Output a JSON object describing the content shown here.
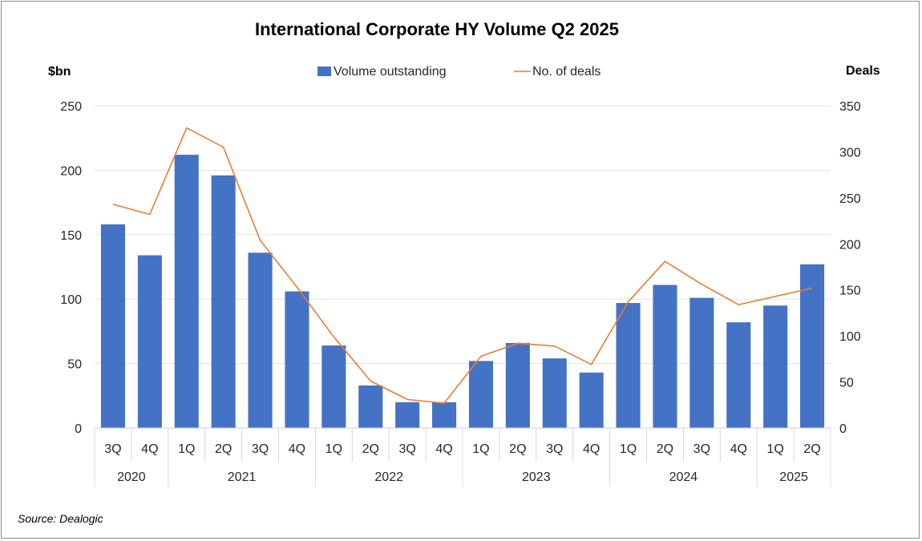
{
  "chart_data": {
    "type": "bar",
    "title": "International Corporate HY Volume Q2 2025",
    "ylabel_left": "$bn",
    "ylabel_right": "Deals",
    "ylim_left": [
      0,
      250
    ],
    "ylim_right": [
      0,
      350
    ],
    "yticks_left": [
      0,
      50,
      100,
      150,
      200,
      250
    ],
    "yticks_right": [
      0,
      50,
      100,
      150,
      200,
      250,
      300,
      350
    ],
    "categories": [
      "3Q",
      "4Q",
      "1Q",
      "2Q",
      "3Q",
      "4Q",
      "1Q",
      "2Q",
      "3Q",
      "4Q",
      "1Q",
      "2Q",
      "3Q",
      "4Q",
      "1Q",
      "2Q",
      "3Q",
      "4Q",
      "1Q",
      "2Q"
    ],
    "year_groups": [
      {
        "label": "2020",
        "count": 2
      },
      {
        "label": "2021",
        "count": 4
      },
      {
        "label": "2022",
        "count": 4
      },
      {
        "label": "2023",
        "count": 4
      },
      {
        "label": "2024",
        "count": 4
      },
      {
        "label": "2025",
        "count": 2
      }
    ],
    "series": [
      {
        "name": "Volume outstanding",
        "type": "bar",
        "axis": "left",
        "color": "#4472C4",
        "values": [
          158,
          134,
          212,
          196,
          136,
          106,
          64,
          33,
          20,
          20,
          52,
          66,
          54,
          43,
          97,
          111,
          101,
          82,
          95,
          127
        ]
      },
      {
        "name": "No. of deals",
        "type": "line",
        "axis": "right",
        "color": "#ED7D31",
        "values": [
          243,
          232,
          326,
          305,
          204,
          153,
          99,
          51,
          31,
          27,
          78,
          92,
          89,
          69,
          137,
          181,
          156,
          134,
          143,
          152
        ]
      }
    ],
    "grid": true,
    "legend": "top-center",
    "source": "Source: Dealogic"
  }
}
